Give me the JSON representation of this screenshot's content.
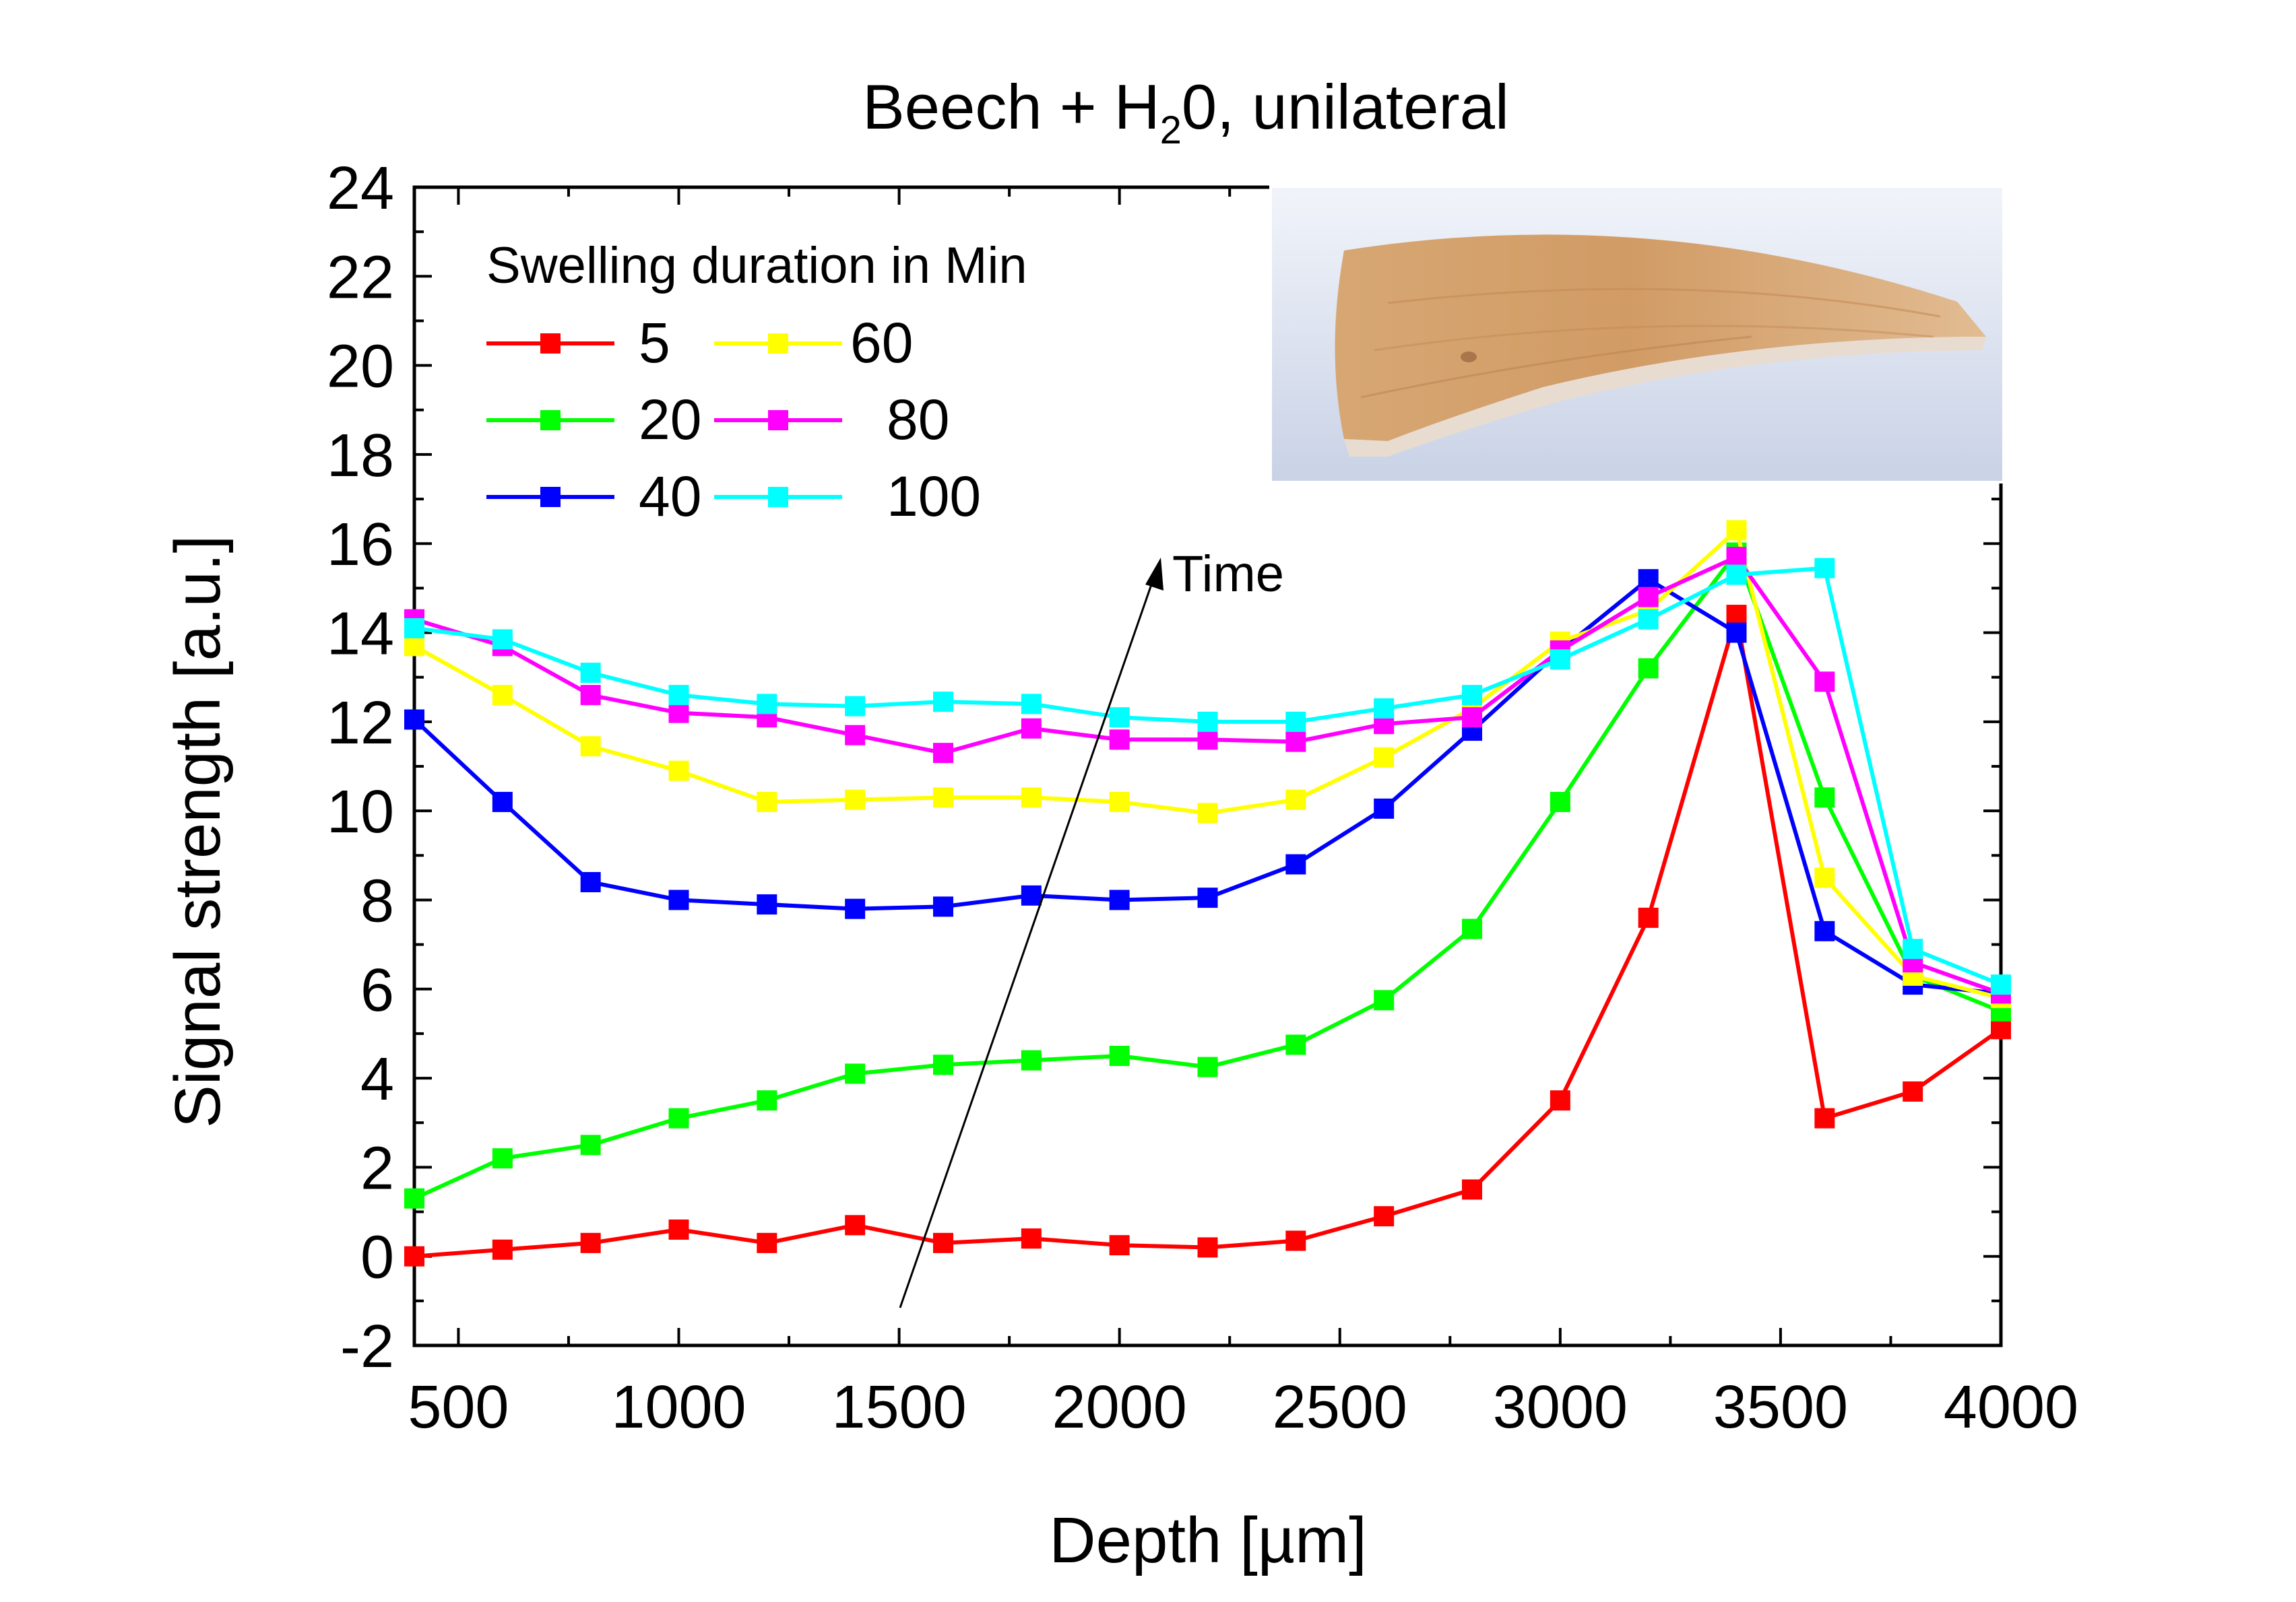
{
  "chart_data": {
    "type": "line",
    "title_main": "Beech +  H",
    "title_sub": "2",
    "title_rest": "0, unilateral",
    "xlabel": "Depth [µm]",
    "ylabel": "Signal strength [a.u.]",
    "xlim": [
      400,
      4000
    ],
    "ylim": [
      -2,
      24
    ],
    "xticks": [
      500,
      1000,
      1500,
      2000,
      2500,
      3000,
      3500,
      4000
    ],
    "yticks": [
      -2,
      0,
      2,
      4,
      6,
      8,
      10,
      12,
      14,
      16,
      18,
      20,
      22,
      24
    ],
    "legend_title": "Swelling duration in Min",
    "legend_placement": "top-left",
    "annotation": "Time",
    "inset": "photo of a curved beech wood strip",
    "x": [
      400,
      600,
      800,
      1000,
      1200,
      1400,
      1600,
      1800,
      2000,
      2200,
      2400,
      2600,
      2800,
      3000,
      3200,
      3400,
      3600,
      3800,
      4000
    ],
    "series": [
      {
        "name": "5",
        "color": "#ff0000",
        "values": [
          0.0,
          0.15,
          0.3,
          0.6,
          0.3,
          0.7,
          0.3,
          0.4,
          0.25,
          0.2,
          0.35,
          0.9,
          1.5,
          3.5,
          7.6,
          14.4,
          3.1,
          3.7,
          5.1
        ]
      },
      {
        "name": "20",
        "color": "#00ff00",
        "values": [
          1.3,
          2.2,
          2.5,
          3.1,
          3.5,
          4.1,
          4.3,
          4.4,
          4.5,
          4.25,
          4.75,
          5.75,
          7.35,
          10.2,
          13.2,
          15.8,
          10.3,
          6.3,
          5.5
        ]
      },
      {
        "name": "40",
        "color": "#0000ff",
        "values": [
          12.05,
          10.2,
          8.4,
          8.0,
          7.9,
          7.8,
          7.85,
          8.1,
          8.0,
          8.05,
          8.8,
          10.05,
          11.8,
          13.6,
          15.2,
          14.0,
          7.3,
          6.1,
          5.9
        ]
      },
      {
        "name": "60",
        "color": "#ffff00",
        "values": [
          13.7,
          12.6,
          11.45,
          10.9,
          10.2,
          10.25,
          10.3,
          10.3,
          10.2,
          9.95,
          10.25,
          11.2,
          12.3,
          13.8,
          14.5,
          16.3,
          8.5,
          6.3,
          5.8
        ]
      },
      {
        "name": "80",
        "color": "#ff00ff",
        "values": [
          14.3,
          13.7,
          12.6,
          12.2,
          12.1,
          11.7,
          11.3,
          11.85,
          11.6,
          11.6,
          11.55,
          11.95,
          12.1,
          13.6,
          14.8,
          15.7,
          12.9,
          6.6,
          5.9
        ]
      },
      {
        "name": "100",
        "color": "#00ffff",
        "values": [
          14.1,
          13.85,
          13.1,
          12.6,
          12.4,
          12.35,
          12.45,
          12.4,
          12.1,
          12.0,
          12.0,
          12.3,
          12.6,
          13.4,
          14.3,
          15.3,
          15.45,
          6.9,
          6.1
        ]
      }
    ]
  }
}
